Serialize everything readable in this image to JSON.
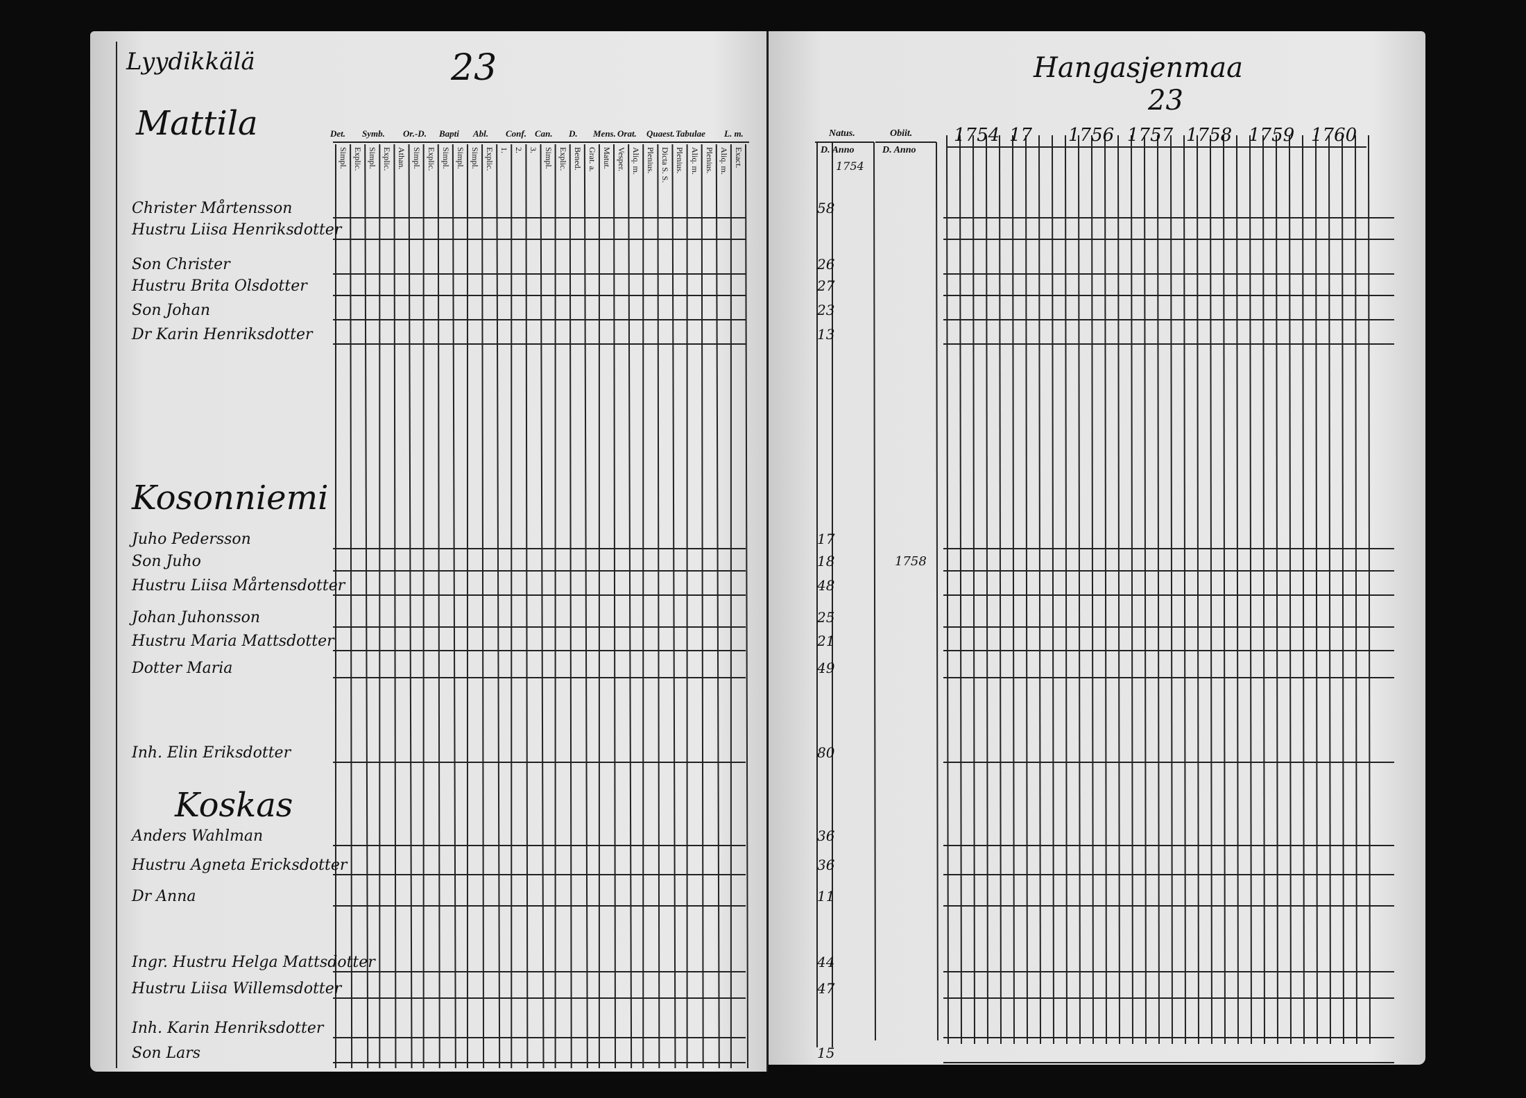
{
  "left_page": {
    "parish": "Lyydikkälä",
    "page_number": "23",
    "column_headers": [
      "Det.",
      "Symb.",
      "Or.-D.",
      "Bapti",
      "Abl.",
      "Conf.",
      "Can.",
      "D.",
      "Mens.",
      "Orat.",
      "Quaest.",
      "Tabulae",
      "L. m."
    ],
    "column_subheaders": [
      "Simpl.",
      "Explic.",
      "Simpl.",
      "Explic.",
      "Athan.",
      "Simpl.",
      "Explic.",
      "Simpl.",
      "Simpl.",
      "Simpl.",
      "Explic.",
      "1.",
      "2.",
      "3.",
      "Simpl.",
      "Explic.",
      "Bened.",
      "Grat. a.",
      "Matut.",
      "Vesper.",
      "Aliq. m.",
      "Plenius.",
      "Dicta S. S.",
      "Plenius.",
      "Aliq. m.",
      "Plenius.",
      "Aliq. m.",
      "Exact."
    ],
    "farms": [
      {
        "name": "Mattila",
        "persons": [
          {
            "name": "Christer Mårtensson",
            "natus": 58
          },
          {
            "name": "Hustru Liisa Henriksdotter"
          },
          {
            "name": "Son Christer",
            "natus": 26
          },
          {
            "name": "Hustru Brita Olsdotter",
            "natus": 27
          },
          {
            "name": "Son Johan",
            "natus": 23
          },
          {
            "name": "Dr Karin Henriksdotter",
            "natus": 13
          }
        ]
      },
      {
        "name": "Kosonniemi",
        "persons": [
          {
            "name": "Juho Pedersson",
            "natus": 17
          },
          {
            "name": "Son Juho",
            "natus": 18,
            "obiit": 1758
          },
          {
            "name": "Hustru Liisa Mårtensdotter",
            "natus": 48
          },
          {
            "name": "Johan Juhonsson",
            "natus": 25
          },
          {
            "name": "Hustru Maria Mattsdotter",
            "natus": 21
          },
          {
            "name": "Dotter Maria",
            "natus": 49
          },
          {
            "name": "Inh. Elin Eriksdotter",
            "natus": 80
          }
        ]
      },
      {
        "name": "Koskas",
        "persons": [
          {
            "name": "Anders Wahlman",
            "natus": 36
          },
          {
            "name": "Hustru Agneta Ericksdotter",
            "natus": 36
          },
          {
            "name": "Dr Anna",
            "natus": 11
          },
          {
            "name": "Ingr. Hustru Helga Mattsdotter",
            "natus": 44
          },
          {
            "name": "Hustru Liisa Willemsdotter",
            "natus": 47
          },
          {
            "name": "Inh. Karin Henriksdotter"
          },
          {
            "name": "Son Lars",
            "natus": 15
          }
        ]
      }
    ]
  },
  "right_page": {
    "village": "Hangasjenmaa",
    "page_number": "23",
    "natus_header": "Natus.",
    "obiit_header": "Obiit.",
    "natus_subheader": "D. Anno",
    "obiit_subheader": "D. Anno",
    "natus_anno": 1754,
    "years": [
      "1754",
      "17",
      "1756",
      "1757",
      "1758",
      "1759",
      "1760"
    ]
  }
}
